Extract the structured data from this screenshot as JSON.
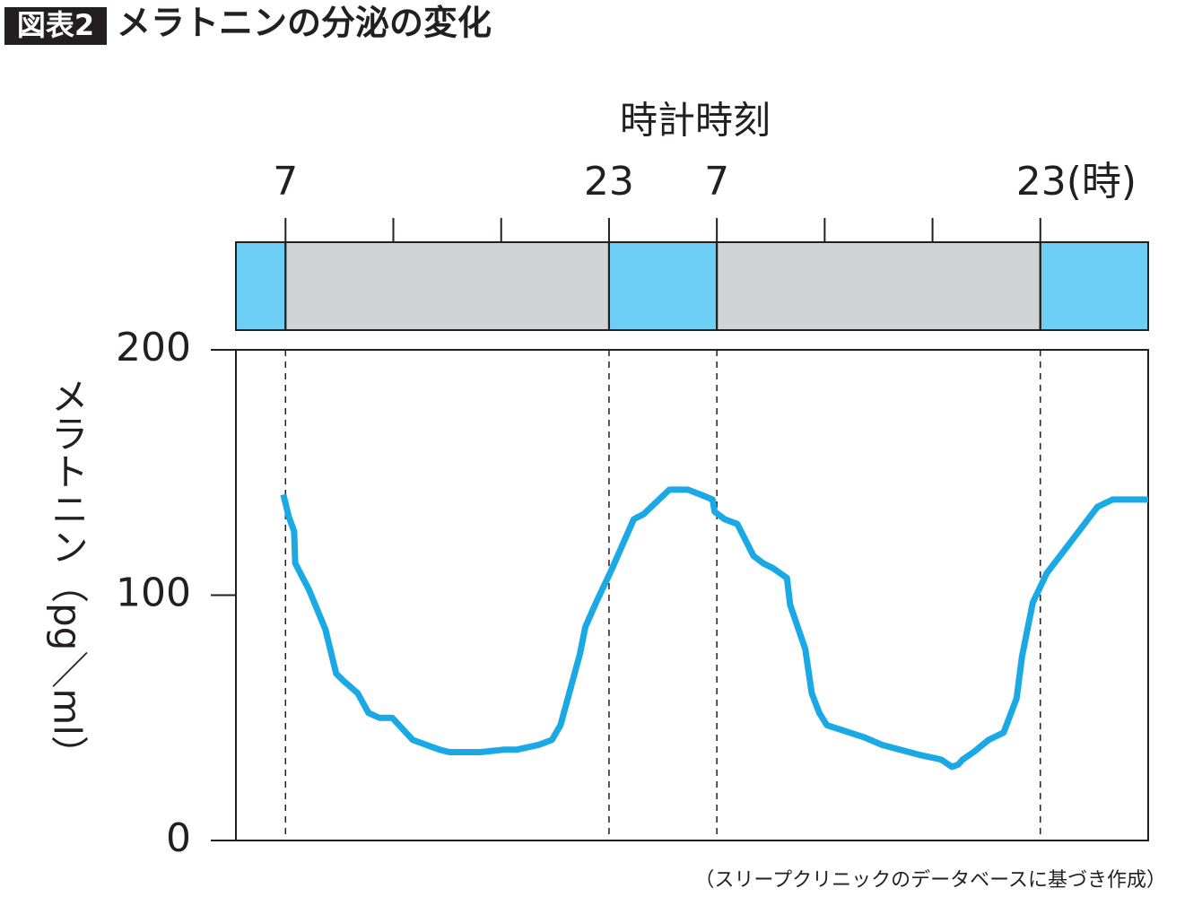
{
  "chart_data": {
    "type": "line",
    "badge": "図表2",
    "title": "メラトニンの分泌の変化",
    "x_axis_title": "時計時刻",
    "y_axis_title": "メラトニン（pg／ml）",
    "source": "（スリープクリニックのデータベースに基づき作成）",
    "color": "#1ba9e6",
    "x": [
      -0.02,
      0.03,
      0.08,
      0.09,
      0.22,
      0.37,
      0.47,
      0.54,
      0.67,
      0.77,
      0.87,
      0.99,
      1.18,
      1.43,
      1.52,
      1.81,
      2.02,
      2.14,
      2.35,
      2.47,
      2.55,
      2.73,
      2.78,
      2.88,
      3.02,
      3.23,
      3.32,
      3.56,
      3.73,
      3.85,
      3.96,
      3.98,
      4.07,
      4.19,
      4.34,
      4.43,
      4.52,
      4.65,
      4.68,
      4.82,
      4.88,
      4.95,
      5.02,
      5.37,
      5.53,
      5.87,
      6.08,
      6.18,
      6.24,
      6.28,
      6.38,
      6.52,
      6.66,
      6.78,
      6.83,
      6.93,
      7.06,
      7.2,
      7.53,
      7.67,
      8
    ],
    "values": [
      141,
      132,
      126,
      113,
      102,
      86,
      68,
      65,
      60,
      52,
      50,
      50,
      41,
      37,
      36,
      36,
      37,
      37,
      39,
      41,
      47,
      76,
      87,
      97,
      110,
      131,
      133,
      143,
      143,
      141,
      139,
      134,
      131,
      129,
      116,
      113,
      111,
      107,
      96,
      78,
      60,
      52,
      47,
      42,
      39,
      35,
      33,
      30,
      31,
      33,
      36,
      41,
      44,
      58,
      75,
      97,
      109,
      117,
      136,
      139,
      139
    ],
    "xlim": [
      -0.46,
      8
    ],
    "xticks": [
      {
        "value": 0,
        "label": "7"
      },
      {
        "value": 3,
        "label": "23"
      },
      {
        "value": 4,
        "label": "7"
      },
      {
        "value": 7,
        "label": "23(時)"
      }
    ],
    "xticks_minor": [
      1,
      2,
      5,
      6
    ],
    "ylim": [
      0,
      200
    ],
    "yticks": [
      0,
      100,
      200
    ],
    "bands": [
      {
        "start": -0.46,
        "end": 0,
        "color": "#6dcff6"
      },
      {
        "start": 0,
        "end": 3,
        "color": "#d1d3d4"
      },
      {
        "start": 3,
        "end": 4,
        "color": "#6dcff6"
      },
      {
        "start": 4,
        "end": 7,
        "color": "#d1d3d4"
      },
      {
        "start": 7,
        "end": 8,
        "color": "#6dcff6"
      }
    ]
  }
}
